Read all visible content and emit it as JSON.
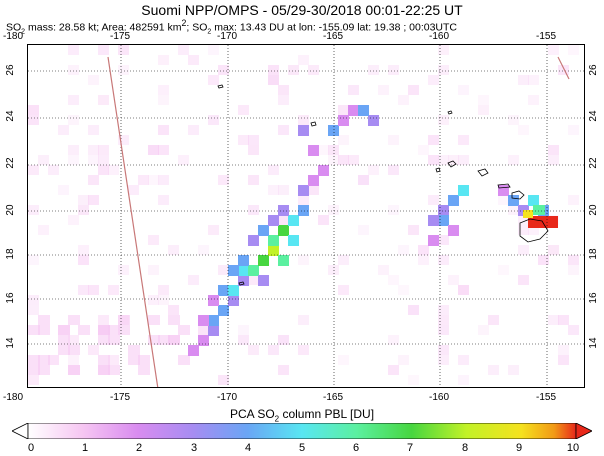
{
  "title": "Suomi NPP/OMPS - 05/29-30/2018 00:01-22:25 UT",
  "subtitle": {
    "prefix": "SO",
    "sub": "2",
    "text": " mass: 28.58 kt; Area: 482591 km",
    "sup": "2",
    "text2": "; SO",
    "sub2": "2",
    "text3": " max: 13.43 DU at lon: -155.09 lat: 19.38 ; 00:03UTC"
  },
  "lon_ticks": [
    "-180",
    "-175",
    "-170",
    "-165",
    "-160",
    "-155"
  ],
  "lat_ticks": [
    "14",
    "16",
    "18",
    "20",
    "22",
    "24",
    "26"
  ],
  "colorbar": {
    "title_prefix": "PCA SO",
    "title_sub": "2",
    "title_suffix": " column PBL [DU]",
    "labels": [
      "0",
      "1",
      "2",
      "3",
      "4",
      "5",
      "6",
      "7",
      "8",
      "9",
      "10"
    ],
    "colors": [
      "#ffffff",
      "#f6c6f2",
      "#d98cf0",
      "#a78cf2",
      "#6aa5f5",
      "#58e6f2",
      "#5bf0a0",
      "#47d640",
      "#c2f227",
      "#f5e21e",
      "#f29a16",
      "#e8281a"
    ]
  },
  "colors": {
    "coastline": "#000000",
    "trajectory": "#c87878",
    "frame": "#000000"
  }
}
